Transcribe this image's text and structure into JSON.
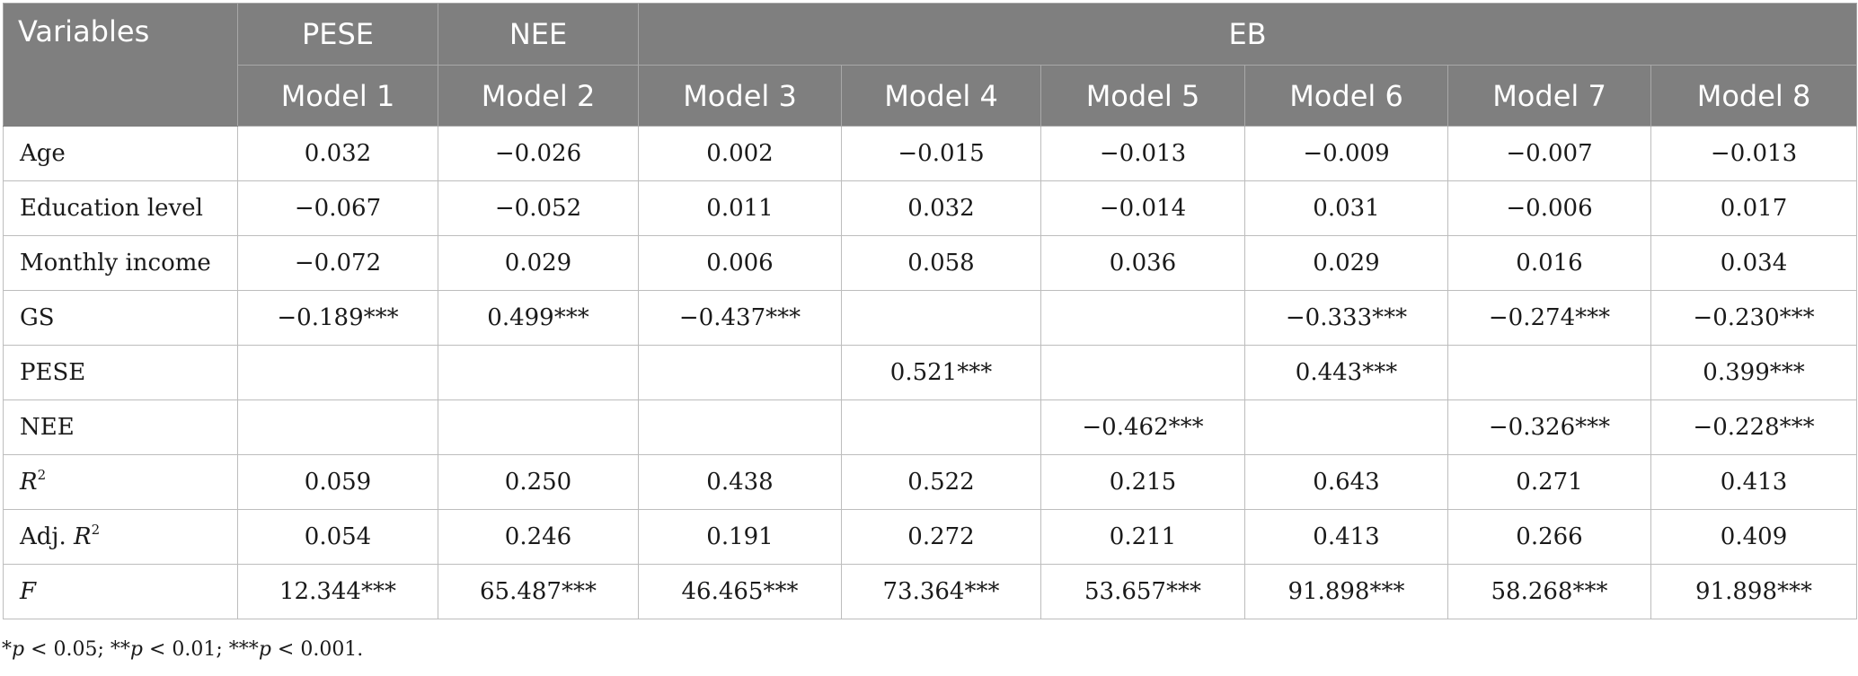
{
  "header": {
    "variables": "Variables",
    "groups": [
      "PESE",
      "NEE",
      "EB"
    ],
    "models": [
      "Model 1",
      "Model 2",
      "Model 3",
      "Model 4",
      "Model 5",
      "Model 6",
      "Model 7",
      "Model 8"
    ]
  },
  "rows": [
    {
      "label": "Age",
      "values": [
        "0.032",
        "−0.026",
        "0.002",
        "−0.015",
        "−0.013",
        "−0.009",
        "−0.007",
        "−0.013"
      ]
    },
    {
      "label": "Education level",
      "values": [
        "−0.067",
        "−0.052",
        "0.011",
        "0.032",
        "−0.014",
        "0.031",
        "−0.006",
        "0.017"
      ]
    },
    {
      "label": "Monthly income",
      "values": [
        "−0.072",
        "0.029",
        "0.006",
        "0.058",
        "0.036",
        "0.029",
        "0.016",
        "0.034"
      ]
    },
    {
      "label": "GS",
      "values": [
        "−0.189***",
        "0.499***",
        "−0.437***",
        "",
        "",
        "−0.333***",
        "−0.274***",
        "−0.230***"
      ]
    },
    {
      "label": "PESE",
      "values": [
        "",
        "",
        "",
        "0.521***",
        "",
        "0.443***",
        "",
        "0.399***"
      ]
    },
    {
      "label": "NEE",
      "values": [
        "",
        "",
        "",
        "",
        "−0.462***",
        "",
        "−0.326***",
        "−0.228***"
      ]
    },
    {
      "label_main": "R",
      "label_sup": "2",
      "values": [
        "0.059",
        "0.250",
        "0.438",
        "0.522",
        "0.215",
        "0.643",
        "0.271",
        "0.413"
      ]
    },
    {
      "label_prefix": "Adj. ",
      "label_main": "R",
      "label_sup": "2",
      "values": [
        "0.054",
        "0.246",
        "0.191",
        "0.272",
        "0.211",
        "0.413",
        "0.266",
        "0.409"
      ]
    },
    {
      "label_main": "F",
      "values": [
        "12.344***",
        "65.487***",
        "46.465***",
        "73.364***",
        "53.657***",
        "91.898***",
        "58.268***",
        "91.898***"
      ]
    }
  ],
  "footnote": {
    "part1": "*",
    "p1": "p",
    "part2": " < 0.05; **",
    "p2": "p",
    "part3": " < 0.01; ***",
    "p3": "p",
    "part4": " < 0.001."
  }
}
